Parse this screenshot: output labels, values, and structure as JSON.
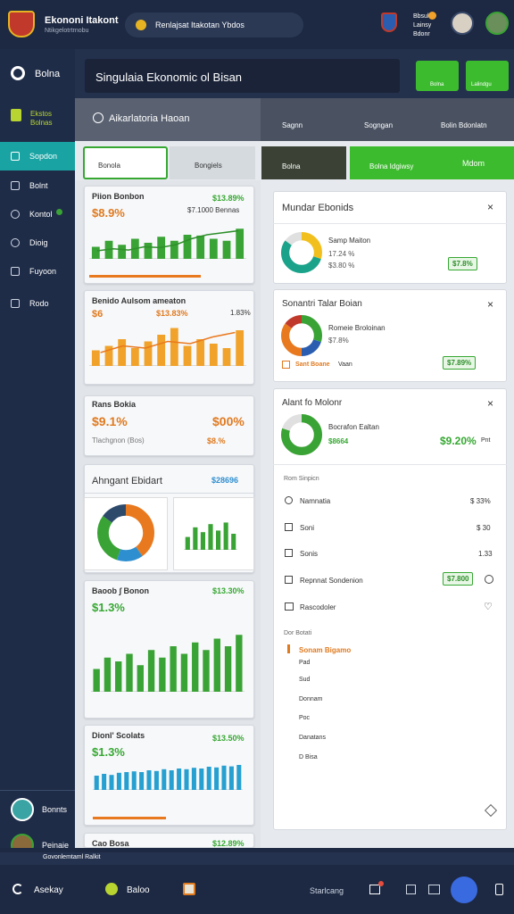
{
  "header": {
    "title": "Ekononi Itakont",
    "subtitle": "Ntikgelotrtrnobu",
    "search": "Renlajsat Itakotan Ybdos",
    "user": "Bbsuk Lainsy Bdonr"
  },
  "sidebar": {
    "items": [
      "Bolna",
      "Ekstos Bolnas",
      "Sopdon",
      "Bolnt",
      "Kontol",
      "Dioig",
      "Fuyoon",
      "Rodo"
    ],
    "footer": [
      "Bonnts",
      "Peinaie"
    ]
  },
  "banner": {
    "title": "Singulaia Ekonomic ol Bisan",
    "buttons": [
      "Bolna",
      "Lalindgu"
    ]
  },
  "toolbar": {
    "title": "Aikarlatoria Haoan",
    "columns": [
      "Sagnn",
      "Sogngan",
      "Bolin Bdonlatn"
    ]
  },
  "tabs": [
    "Bonola",
    "Bongiels",
    "Bolna",
    "Bolna Idgiwsy",
    "Mdom"
  ],
  "left_cards": [
    {
      "title": "Piion Bonbon",
      "value": "$8.9%",
      "change": "$13.89%",
      "note": "$7.1000 Bennas",
      "chart": {
        "type": "bar",
        "color": "#3aa335",
        "ylim": [
          0,
          100
        ],
        "values": [
          30,
          45,
          35,
          50,
          40,
          55,
          45,
          60,
          58,
          50,
          45,
          75
        ],
        "line": [
          20,
          25,
          22,
          30,
          28,
          35,
          50,
          60,
          65,
          70
        ]
      }
    },
    {
      "title": "Benido Aulsom ameaton",
      "value": "$6",
      "change": "$13.83%",
      "note": "1.83%",
      "chart": {
        "type": "bar",
        "color": "#f0a22a",
        "ylim": [
          0,
          100
        ],
        "values": [
          35,
          45,
          60,
          40,
          55,
          70,
          85,
          45,
          60,
          50,
          40,
          80
        ],
        "line": [
          30,
          45,
          40,
          55,
          50,
          65,
          75
        ]
      }
    },
    {
      "title": "Rans Bokia",
      "value": "$9.1%",
      "value2": "$00%",
      "note": "Tlachgnon (Bos)",
      "note2": "$8.%"
    },
    {
      "title": "Ahngant Ebidart",
      "change": "$28696",
      "donut": {
        "type": "donut",
        "colors": [
          "#e9791e",
          "#2e8fd0",
          "#3aa335",
          "#2d4a6b"
        ],
        "values": [
          40,
          15,
          30,
          15
        ]
      },
      "chart": {
        "type": "bar",
        "color": "#3aa335",
        "ylim": [
          0,
          100
        ],
        "values": [
          40,
          70,
          55,
          80,
          60,
          85,
          50
        ]
      }
    },
    {
      "title": "Baoob ∫ Bonon",
      "value": "$1.3%",
      "change": "$13.30%",
      "chart": {
        "type": "bar",
        "color": "#3aa335",
        "ylim": [
          0,
          100
        ],
        "values": [
          30,
          45,
          40,
          50,
          35,
          55,
          45,
          60,
          50,
          65,
          55,
          70,
          60,
          75
        ]
      },
      "line": {
        "type": "bar",
        "ylim": [
          0,
          100
        ],
        "values": []
      }
    },
    {
      "title": "Dionl' Scolats",
      "value": "$1.3%",
      "change": "$13.50%",
      "chart": {
        "type": "bar",
        "color": "#26a0d0",
        "ylim": [
          0,
          100
        ],
        "values": [
          40,
          45,
          42,
          48,
          50,
          52,
          50,
          55,
          53,
          58,
          55,
          60,
          58,
          62,
          60,
          65,
          63,
          68,
          66,
          70
        ]
      }
    },
    {
      "title": "Cao Bosa",
      "change": "$12.89%"
    }
  ],
  "right_cards": [
    {
      "title": "Mundar Ebonids",
      "label": "Samp Maiton",
      "value": "17.24 %",
      "value2": "$3.80 %",
      "badge": "$7.8%",
      "donut": {
        "type": "donut",
        "colors": [
          "#f2c01e",
          "#1aa38a",
          "#e0e0e0"
        ],
        "values": [
          30,
          55,
          15
        ]
      }
    },
    {
      "title": "Sonantri Talar Boian",
      "label": "Romeie Broloinan",
      "value": "$7.8%",
      "note": "Sant Boane",
      "note2": "Vaan",
      "badge": "$7.89%",
      "donut": {
        "type": "donut",
        "colors": [
          "#3aa335",
          "#2a5db0",
          "#e9791e",
          "#c0392b"
        ],
        "values": [
          30,
          20,
          35,
          15
        ]
      }
    },
    {
      "title": "Alant fo Molonr",
      "label": "Bocrafon Ealtan",
      "value": "$8664",
      "change": "$9.20%",
      "unit": "Pnt",
      "donut": {
        "type": "donut",
        "colors": [
          "#3aa335",
          "#e0e0e0"
        ],
        "values": [
          80,
          20
        ]
      },
      "list_header": "Rom Sinpicn",
      "rows": [
        {
          "label": "Namnatia",
          "value": "$ 33%"
        },
        {
          "label": "Soni",
          "value": "$ 30"
        },
        {
          "label": "Sonis",
          "value": "1.33"
        },
        {
          "label": "Repnnat Sondenion",
          "value": "$7.800"
        },
        {
          "label": "Rascodoler"
        }
      ],
      "section": "Dor Botati",
      "items": [
        "Sonam Bigamo",
        "Pad",
        "Sud",
        "Donnam",
        "Poc",
        "Danatans",
        "D Bisa"
      ]
    }
  ],
  "footer": {
    "strip": "Govonlemtaml Ralkit",
    "nav": [
      "Asekay",
      "Baloo",
      "Starlcang"
    ]
  }
}
